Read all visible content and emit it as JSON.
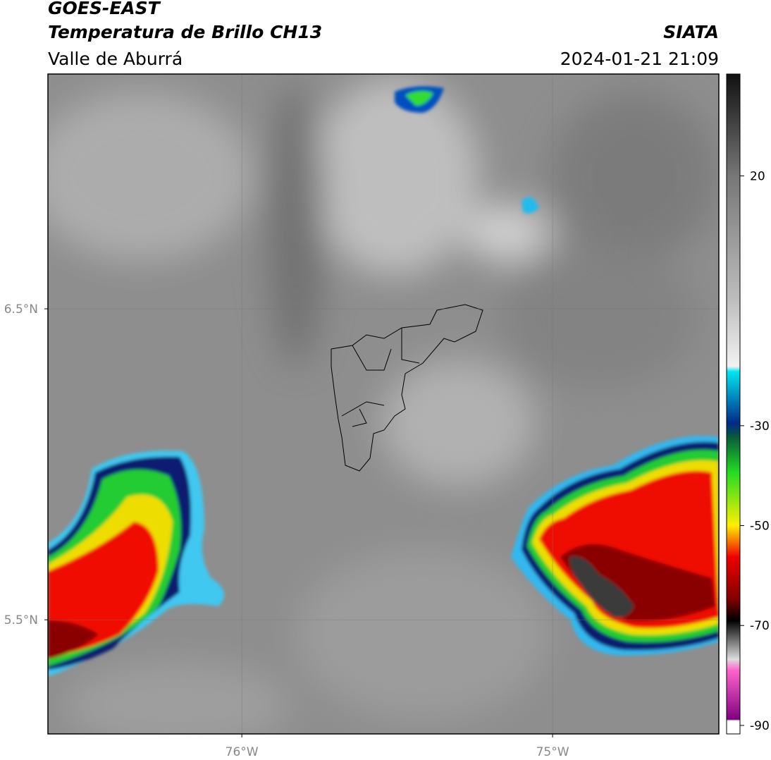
{
  "header": {
    "satellite": "GOES-EAST",
    "product": "Temperatura de Brillo CH13",
    "region": "Valle de Aburrá",
    "agency": "SIATA",
    "datetime": "2024-01-21 21:09"
  },
  "map": {
    "lat_range": [
      5.133,
      7.255
    ],
    "lon_range": [
      -76.624,
      -74.465
    ],
    "lat_ticks": [
      {
        "value": 6.5,
        "label": "6.5°N"
      },
      {
        "value": 5.5,
        "label": "5.5°N"
      }
    ],
    "lon_ticks": [
      {
        "value": -76,
        "label": "76°W"
      },
      {
        "value": -75,
        "label": "75°W"
      }
    ]
  },
  "colorbar": {
    "range": [
      -91.7,
      40.4
    ],
    "ticks": [
      20,
      -30,
      -50,
      -70,
      -90
    ]
  }
}
